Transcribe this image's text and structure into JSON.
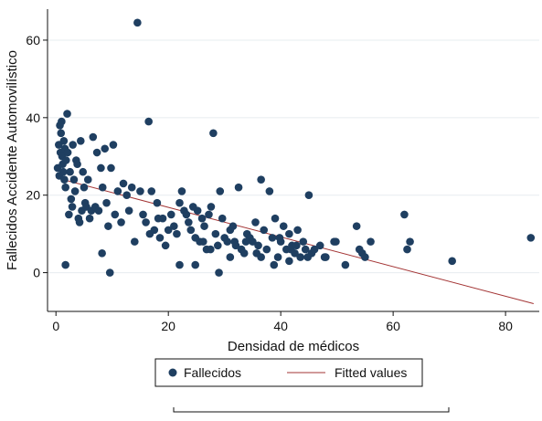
{
  "chart_data": {
    "type": "scatter",
    "title": "",
    "xlabel": "Densidad de médicos",
    "ylabel": "Fallecidos Accidente Automovilístico",
    "xlim": [
      -1.5,
      86
    ],
    "ylim": [
      -10,
      68
    ],
    "xticks": [
      0,
      20,
      40,
      60,
      80
    ],
    "yticks": [
      0,
      20,
      40,
      60
    ],
    "grid": true,
    "legend_position": "bottom",
    "colors": {
      "points": "#1f3f61",
      "fit": "#a33434",
      "axis": "#111111",
      "grid": "#e7ecef"
    },
    "series": [
      {
        "name": "Fallecidos",
        "kind": "scatter",
        "points": [
          [
            0.3,
            27
          ],
          [
            0.5,
            33
          ],
          [
            0.6,
            25
          ],
          [
            0.7,
            38
          ],
          [
            0.8,
            31
          ],
          [
            0.9,
            36
          ],
          [
            1.0,
            39
          ],
          [
            1.1,
            30
          ],
          [
            1.2,
            28
          ],
          [
            1.3,
            26
          ],
          [
            1.4,
            34
          ],
          [
            1.5,
            24
          ],
          [
            1.6,
            32
          ],
          [
            1.7,
            22
          ],
          [
            1.8,
            29
          ],
          [
            2.0,
            41
          ],
          [
            2.1,
            31
          ],
          [
            2.3,
            15
          ],
          [
            2.5,
            26
          ],
          [
            2.7,
            19
          ],
          [
            2.9,
            17
          ],
          [
            3.0,
            33
          ],
          [
            3.2,
            24
          ],
          [
            3.4,
            21
          ],
          [
            3.6,
            29
          ],
          [
            3.8,
            28
          ],
          [
            4.0,
            14
          ],
          [
            4.2,
            13
          ],
          [
            4.4,
            34
          ],
          [
            4.6,
            16
          ],
          [
            4.8,
            26
          ],
          [
            5.0,
            22
          ],
          [
            5.2,
            18
          ],
          [
            5.4,
            17
          ],
          [
            5.7,
            24
          ],
          [
            6.0,
            14
          ],
          [
            6.3,
            16
          ],
          [
            6.6,
            35
          ],
          [
            7.0,
            17
          ],
          [
            7.3,
            31
          ],
          [
            7.6,
            16
          ],
          [
            8.0,
            27
          ],
          [
            8.3,
            22
          ],
          [
            8.7,
            32
          ],
          [
            9.0,
            18
          ],
          [
            9.3,
            12
          ],
          [
            9.8,
            27
          ],
          [
            10.2,
            33
          ],
          [
            10.5,
            15
          ],
          [
            11.0,
            21
          ],
          [
            11.6,
            13
          ],
          [
            12.0,
            23
          ],
          [
            12.6,
            20
          ],
          [
            13.0,
            16
          ],
          [
            13.5,
            22
          ],
          [
            14.0,
            8
          ],
          [
            14.5,
            64.5
          ],
          [
            15.0,
            21
          ],
          [
            15.5,
            15
          ],
          [
            16.0,
            13
          ],
          [
            16.5,
            39
          ],
          [
            17.0,
            21
          ],
          [
            17.5,
            11
          ],
          [
            18.0,
            18
          ],
          [
            18.5,
            9
          ],
          [
            19.0,
            14
          ],
          [
            19.5,
            7
          ],
          [
            20.0,
            11
          ],
          [
            20.5,
            15
          ],
          [
            21.0,
            12
          ],
          [
            21.5,
            10
          ],
          [
            22.0,
            18
          ],
          [
            22.4,
            21
          ],
          [
            22.8,
            16
          ],
          [
            23.2,
            15
          ],
          [
            23.6,
            13
          ],
          [
            24.0,
            11
          ],
          [
            24.4,
            17
          ],
          [
            24.8,
            9
          ],
          [
            25.2,
            16
          ],
          [
            25.6,
            8
          ],
          [
            26.0,
            14
          ],
          [
            26.4,
            12
          ],
          [
            26.8,
            6
          ],
          [
            27.2,
            15
          ],
          [
            27.6,
            17
          ],
          [
            28.0,
            36
          ],
          [
            28.4,
            10
          ],
          [
            28.8,
            7
          ],
          [
            29.2,
            21
          ],
          [
            29.6,
            14
          ],
          [
            30.0,
            9
          ],
          [
            30.5,
            8
          ],
          [
            31.0,
            11
          ],
          [
            31.5,
            12
          ],
          [
            32.0,
            7
          ],
          [
            32.5,
            22
          ],
          [
            33.0,
            6
          ],
          [
            33.5,
            5
          ],
          [
            34.0,
            10
          ],
          [
            34.5,
            9
          ],
          [
            35.0,
            8
          ],
          [
            35.5,
            13
          ],
          [
            36.0,
            7
          ],
          [
            36.5,
            24
          ],
          [
            37.0,
            11
          ],
          [
            37.5,
            6
          ],
          [
            38.0,
            21
          ],
          [
            38.5,
            9
          ],
          [
            39.0,
            14
          ],
          [
            39.5,
            4
          ],
          [
            40.0,
            8
          ],
          [
            40.5,
            12
          ],
          [
            41.0,
            6
          ],
          [
            41.5,
            10
          ],
          [
            42.0,
            7
          ],
          [
            42.5,
            5
          ],
          [
            43.0,
            11
          ],
          [
            43.5,
            4
          ],
          [
            44.0,
            8
          ],
          [
            45.0,
            20
          ],
          [
            45.5,
            5
          ],
          [
            46.0,
            6
          ],
          [
            47.0,
            7
          ],
          [
            48.0,
            4
          ],
          [
            49.5,
            8
          ],
          [
            51.5,
            2
          ],
          [
            53.5,
            12
          ],
          [
            54.0,
            6
          ],
          [
            54.5,
            5
          ],
          [
            55.0,
            4
          ],
          [
            56.0,
            8
          ],
          [
            62.0,
            15
          ],
          [
            62.5,
            6
          ],
          [
            63.0,
            8
          ],
          [
            70.5,
            3
          ],
          [
            84.5,
            9
          ],
          [
            8.2,
            5
          ],
          [
            9.6,
            0
          ],
          [
            1.7,
            2
          ],
          [
            22.0,
            2
          ],
          [
            24.8,
            2
          ],
          [
            29.0,
            0
          ],
          [
            31.0,
            4
          ],
          [
            36.5,
            4
          ],
          [
            38.8,
            2
          ],
          [
            41.5,
            3
          ],
          [
            44.8,
            4
          ],
          [
            47.8,
            4
          ],
          [
            49.8,
            8
          ],
          [
            33.8,
            8
          ],
          [
            35.7,
            5
          ],
          [
            39.8,
            9
          ],
          [
            41.8,
            6
          ],
          [
            42.8,
            7
          ],
          [
            44.4,
            6
          ],
          [
            31.8,
            8
          ],
          [
            26.2,
            8
          ],
          [
            27.5,
            6
          ],
          [
            18.2,
            14
          ],
          [
            16.7,
            10
          ]
        ]
      },
      {
        "name": "Fitted values",
        "kind": "line",
        "x": [
          0,
          85
        ],
        "y": [
          24.5,
          -8
        ]
      }
    ]
  },
  "legend": {
    "series_1": "Fallecidos",
    "series_2": "Fitted values"
  }
}
